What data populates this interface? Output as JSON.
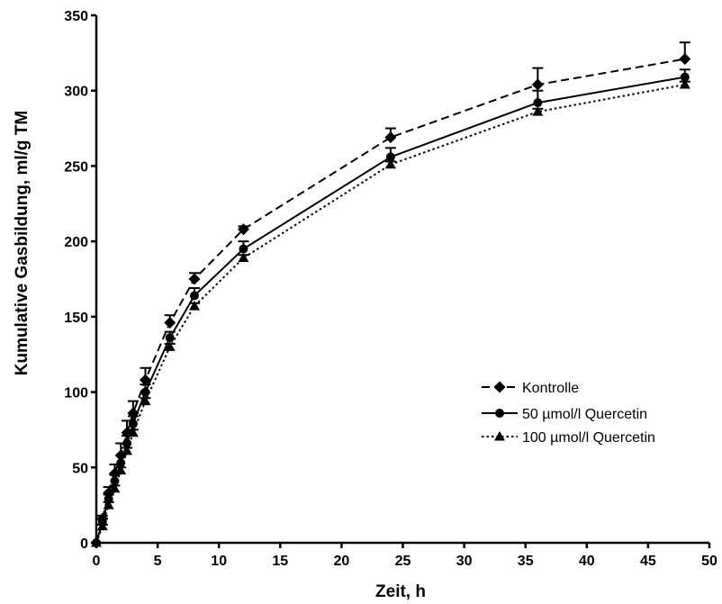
{
  "chart_data": {
    "type": "line",
    "xlabel": "Zeit, h",
    "ylabel": "Kumulative Gasbildung, ml/g TM",
    "xlim": [
      0,
      50
    ],
    "ylim": [
      0,
      350
    ],
    "x_ticks": [
      "0",
      "5",
      "10",
      "15",
      "20",
      "25",
      "30",
      "35",
      "40",
      "45",
      "50"
    ],
    "y_ticks": [
      "0",
      "50",
      "100",
      "150",
      "200",
      "250",
      "300",
      "350"
    ],
    "grid": false,
    "legend_position": "center-right",
    "series": [
      {
        "name": "Kontrolle",
        "marker": "diamond",
        "line_style": "dashed",
        "x": [
          0,
          0.5,
          1,
          1.5,
          2,
          2.5,
          3,
          4,
          6,
          8,
          12,
          24,
          36,
          48
        ],
        "y": [
          0,
          16,
          33,
          46,
          58,
          73,
          86,
          108,
          146,
          175,
          208,
          269,
          304,
          321
        ],
        "error": [
          0,
          2,
          4,
          6,
          8,
          8,
          8,
          8,
          5,
          4,
          2,
          6,
          11,
          11
        ]
      },
      {
        "name": "50 µmol/l Quercetin",
        "marker": "circle",
        "line_style": "solid",
        "x": [
          0,
          0.5,
          1,
          1.5,
          2,
          2.5,
          3,
          4,
          6,
          8,
          12,
          24,
          36,
          48
        ],
        "y": [
          0,
          14,
          29,
          41,
          53,
          66,
          79,
          100,
          136,
          164,
          195,
          256,
          292,
          309
        ],
        "error": [
          0,
          2,
          3,
          4,
          5,
          5,
          5,
          5,
          4,
          5,
          5,
          6,
          8,
          5
        ]
      },
      {
        "name": "100 µmol/l Quercetin",
        "marker": "triangle",
        "line_style": "dotted",
        "x": [
          0,
          0.5,
          1,
          1.5,
          2,
          2.5,
          3,
          4,
          6,
          8,
          12,
          24,
          36,
          48
        ],
        "y": [
          0,
          11,
          25,
          36,
          48,
          61,
          73,
          94,
          130,
          157,
          189,
          251,
          286,
          304
        ],
        "error": [
          0,
          1,
          2,
          2,
          2,
          2,
          2,
          2,
          2,
          2,
          2,
          2,
          2,
          2
        ]
      }
    ]
  }
}
